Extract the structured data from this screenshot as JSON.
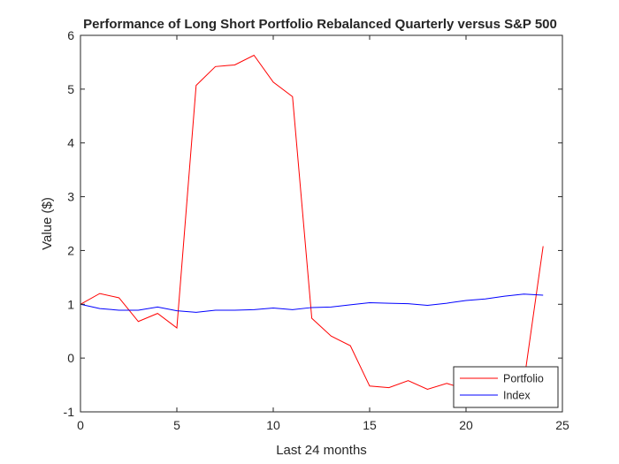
{
  "chart_data": {
    "type": "line",
    "title": "Performance of Long Short Portfolio Rebalanced Quarterly versus S&P 500",
    "xlabel": "Last 24 months",
    "ylabel": "Value ($)",
    "xlim": [
      0,
      25
    ],
    "ylim": [
      -1,
      6
    ],
    "xticks": [
      0,
      5,
      10,
      15,
      20,
      25
    ],
    "yticks": [
      -1,
      0,
      1,
      2,
      3,
      4,
      5,
      6
    ],
    "grid": false,
    "legend_position": "bottom-right",
    "x": [
      0,
      1,
      2,
      3,
      4,
      5,
      6,
      7,
      8,
      9,
      10,
      11,
      12,
      13,
      14,
      15,
      16,
      17,
      18,
      19,
      20,
      21,
      22,
      23,
      24
    ],
    "series": [
      {
        "name": "Portfolio",
        "color": "#ff0000",
        "values": [
          1.0,
          1.2,
          1.12,
          0.68,
          0.83,
          0.56,
          5.07,
          5.42,
          5.45,
          5.63,
          5.13,
          4.86,
          0.74,
          0.41,
          0.23,
          -0.52,
          -0.55,
          -0.42,
          -0.58,
          -0.47,
          -0.58,
          -0.55,
          -0.5,
          -0.45,
          2.08
        ]
      },
      {
        "name": "Index",
        "color": "#0000ff",
        "values": [
          1.0,
          0.92,
          0.89,
          0.89,
          0.95,
          0.88,
          0.85,
          0.89,
          0.89,
          0.9,
          0.93,
          0.9,
          0.94,
          0.95,
          0.99,
          1.03,
          1.02,
          1.01,
          0.98,
          1.02,
          1.07,
          1.1,
          1.15,
          1.19,
          1.17
        ]
      }
    ]
  }
}
